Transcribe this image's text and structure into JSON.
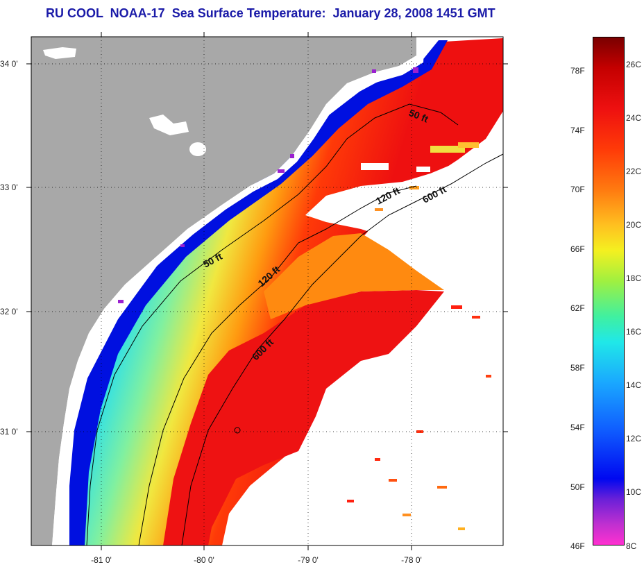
{
  "title": "RU COOL  NOAA-17  Sea Surface Temperature:  January 28, 2008 1451 GMT",
  "map": {
    "x_ticks": [
      "-81 0'",
      "-80 0'",
      "-79 0'",
      "-78 0'"
    ],
    "y_ticks": [
      "34 0'",
      "33 0'",
      "32 0'",
      "31 0'"
    ],
    "contour_labels": [
      "50 ft",
      "120 ft",
      "600 ft",
      "50 ft",
      "120 ft",
      "600 ft"
    ]
  },
  "colorbar": {
    "fahrenheit_labels": [
      "78F",
      "74F",
      "70F",
      "66F",
      "62F",
      "58F",
      "54F",
      "50F",
      "46F"
    ],
    "celsius_labels": [
      "26C",
      "24C",
      "22C",
      "20C",
      "18C",
      "16C",
      "14C",
      "12C",
      "10C",
      "8C"
    ],
    "range_celsius": [
      8,
      27
    ]
  },
  "colors": {
    "title": "#1a1aa8",
    "land": "#a8a8a8",
    "cloud": "#ffffff"
  }
}
